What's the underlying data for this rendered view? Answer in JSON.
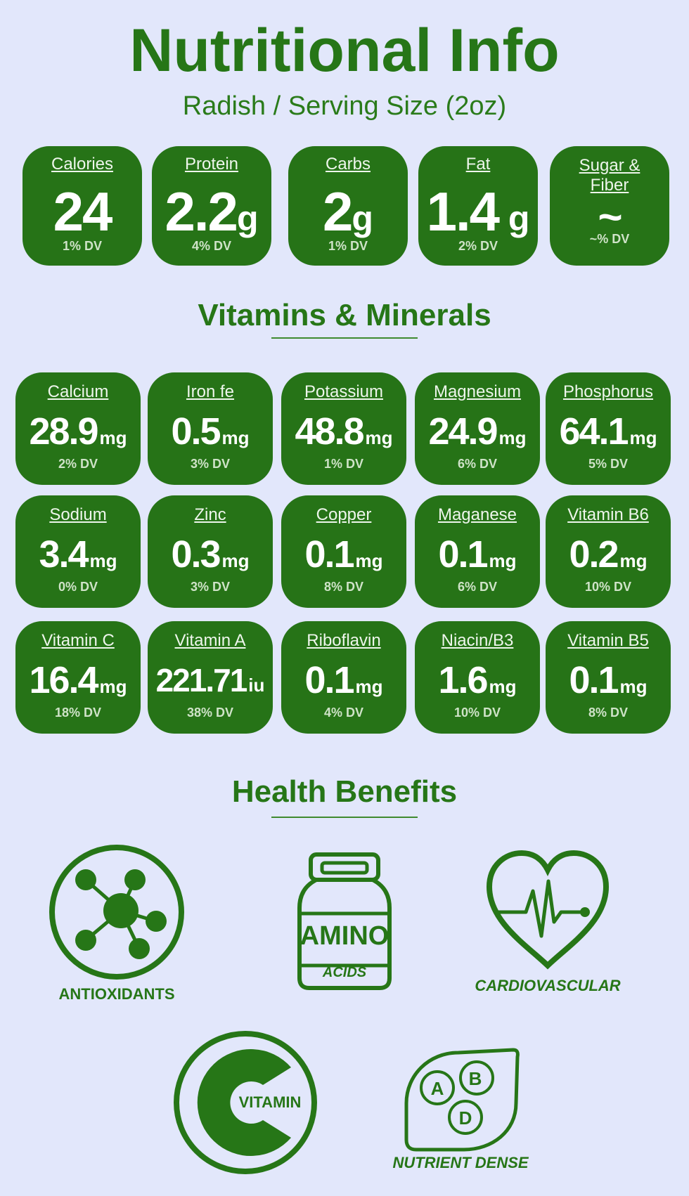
{
  "header": {
    "title": "Nutritional Info",
    "subtitle": "Radish / Serving Size (2oz)"
  },
  "macros": [
    {
      "label": "Calories",
      "value": "24",
      "unit": "",
      "dv": "1% DV"
    },
    {
      "label": "Protein",
      "value": "2.2",
      "unit": "g",
      "dv": "4% DV"
    },
    {
      "label": "Carbs",
      "value": "2",
      "unit": "g",
      "dv": "1% DV"
    },
    {
      "label": "Fat",
      "value": "1.4",
      "unit": " g",
      "dv": "2% DV"
    },
    {
      "label": "Sugar & Fiber",
      "value": "~",
      "unit": "",
      "dv": "~% DV"
    }
  ],
  "vitamins_section": {
    "title": "Vitamins & Minerals"
  },
  "vitamins": [
    {
      "label": "Calcium",
      "value": "28.9",
      "unit": "mg",
      "dv": "2% DV"
    },
    {
      "label": "Iron fe",
      "value": "0.5",
      "unit": "mg",
      "dv": "3% DV"
    },
    {
      "label": "Potassium",
      "value": "48.8",
      "unit": "mg",
      "dv": "1% DV"
    },
    {
      "label": "Magnesium",
      "value": "24.9",
      "unit": "mg",
      "dv": "6% DV"
    },
    {
      "label": "Phosphorus",
      "value": "64.1",
      "unit": "mg",
      "dv": "5% DV"
    },
    {
      "label": "Sodium",
      "value": "3.4",
      "unit": "mg",
      "dv": "0% DV"
    },
    {
      "label": "Zinc",
      "value": "0.3",
      "unit": "mg",
      "dv": "3% DV"
    },
    {
      "label": "Copper",
      "value": "0.1",
      "unit": "mg",
      "dv": "8% DV"
    },
    {
      "label": "Maganese",
      "value": "0.1",
      "unit": "mg",
      "dv": "6% DV"
    },
    {
      "label": "Vitamin B6",
      "value": "0.2",
      "unit": "mg",
      "dv": "10% DV"
    },
    {
      "label": "Vitamin C",
      "value": "16.4",
      "unit": "mg",
      "dv": "18% DV"
    },
    {
      "label": "Vitamin A",
      "value": "221.71",
      "unit": "iu",
      "dv": "38% DV"
    },
    {
      "label": "Riboflavin",
      "value": "0.1",
      "unit": "mg",
      "dv": "4% DV"
    },
    {
      "label": "Niacin/B3",
      "value": "1.6",
      "unit": "mg",
      "dv": "10% DV"
    },
    {
      "label": "Vitamin B5",
      "value": "0.1",
      "unit": "mg",
      "dv": "8% DV"
    }
  ],
  "benefits_section": {
    "title": "Health Benefits"
  },
  "benefits": {
    "antioxidants": {
      "label": "ANTIOXIDANTS",
      "icon": "molecule-icon"
    },
    "amino": {
      "label_main": "AMINO",
      "label_sub": "ACIDS",
      "icon": "amino-jar-icon"
    },
    "cardio": {
      "label": "CARDIOVASCULAR",
      "icon": "heart-pulse-icon"
    },
    "vitamin": {
      "label": "VITAMIN",
      "icon": "vitamin-c-icon"
    },
    "nutrient": {
      "label": "NUTRIENT DENSE",
      "icon": "leaf-abd-icon",
      "letters": [
        "A",
        "B",
        "D"
      ]
    }
  },
  "colors": {
    "background": "#e2e7fb",
    "card": "#267317",
    "accent": "#267617"
  }
}
